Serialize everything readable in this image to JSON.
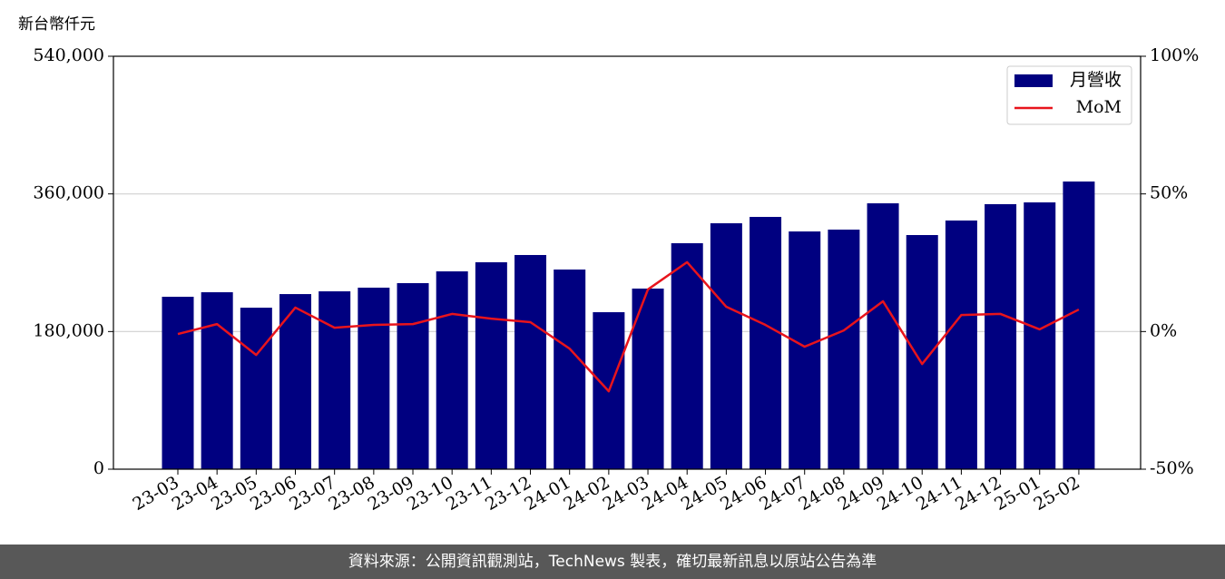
{
  "chart_data": {
    "type": "bar_line",
    "y_label": "新台幣仟元",
    "categories": [
      "23-03",
      "23-04",
      "23-05",
      "23-06",
      "23-07",
      "23-08",
      "23-09",
      "23-10",
      "23-11",
      "23-12",
      "24-01",
      "24-02",
      "24-03",
      "24-04",
      "24-05",
      "24-06",
      "24-07",
      "24-08",
      "24-09",
      "24-10",
      "24-11",
      "24-12",
      "25-01",
      "25-02"
    ],
    "series": [
      {
        "name": "月營收",
        "color": "#000080",
        "type": "bar",
        "values": [
          225500,
          231400,
          211200,
          229000,
          232600,
          237400,
          243300,
          258700,
          270600,
          280100,
          261100,
          205300,
          236200,
          295500,
          321600,
          329900,
          310900,
          313300,
          347700,
          306200,
          325200,
          346600,
          348900,
          376200
        ]
      },
      {
        "name": "MoM",
        "color": "#e8141c",
        "type": "line",
        "axis": "y2",
        "values": [
          -0.9,
          2.7,
          -8.5,
          8.7,
          1.4,
          2.4,
          2.7,
          6.4,
          4.7,
          3.4,
          -6.2,
          -21.7,
          15.3,
          25.2,
          9.0,
          2.4,
          -5.5,
          0.4,
          11.0,
          -11.8,
          6.0,
          6.4,
          0.8,
          8.0
        ]
      }
    ],
    "ylim": [
      0,
      540000
    ],
    "yticks": [
      0,
      {
        "value": 180000,
        "label": "180,000"
      },
      {
        "value": 360000,
        "label": "360,000"
      },
      {
        "value": 540000,
        "label": "540,000"
      }
    ],
    "y2lim": [
      -50,
      100
    ],
    "y2ticks": [
      {
        "value": -50,
        "label": "-50%"
      },
      {
        "value": 0,
        "label": "0%"
      },
      {
        "value": 50,
        "label": "50%"
      },
      {
        "value": 100,
        "label": "100%"
      }
    ],
    "grid": true,
    "legend": "upper right",
    "source": "資料來源：公開資訊觀測站，TechNews 製表，確切最新訊息以原站公告為準"
  }
}
